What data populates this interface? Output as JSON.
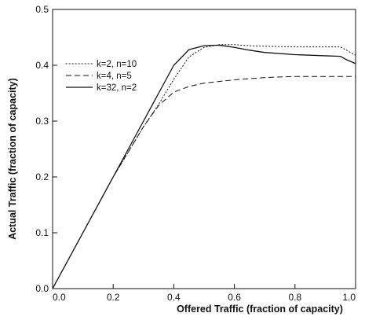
{
  "chart_data": {
    "type": "line",
    "title": "",
    "xlabel": "Offered Traffic (fraction of capacity)",
    "ylabel": "Actual Traffic (fraction of capacity)",
    "xlim": [
      0.0,
      1.0
    ],
    "ylim": [
      0.0,
      0.5
    ],
    "x_ticks": [
      {
        "value": 0.0,
        "label": "0.0"
      },
      {
        "value": 0.2,
        "label": "0.2"
      },
      {
        "value": 0.4,
        "label": "0.4"
      },
      {
        "value": 0.6,
        "label": "0.6"
      },
      {
        "value": 0.8,
        "label": "0.8"
      },
      {
        "value": 1.0,
        "label": "1.0"
      }
    ],
    "y_ticks": [
      {
        "value": 0.0,
        "label": "0.0"
      },
      {
        "value": 0.1,
        "label": "0.1"
      },
      {
        "value": 0.2,
        "label": "0.2"
      },
      {
        "value": 0.3,
        "label": "0.3"
      },
      {
        "value": 0.4,
        "label": "0.4"
      },
      {
        "value": 0.5,
        "label": "0.5"
      }
    ],
    "grid": false,
    "legend_position": "upper-left",
    "series": [
      {
        "name": "k=2, n=10",
        "style": "dotted",
        "x": [
          0.0,
          0.1,
          0.2,
          0.3,
          0.35,
          0.4,
          0.45,
          0.5,
          0.55,
          0.6,
          0.65,
          0.7,
          0.8,
          0.9,
          0.95,
          1.0
        ],
        "y": [
          0.0,
          0.1,
          0.2,
          0.29,
          0.33,
          0.375,
          0.415,
          0.432,
          0.437,
          0.437,
          0.435,
          0.434,
          0.433,
          0.433,
          0.433,
          0.418
        ]
      },
      {
        "name": "k=4, n=5",
        "style": "dashed",
        "x": [
          0.0,
          0.1,
          0.2,
          0.3,
          0.35,
          0.4,
          0.45,
          0.5,
          0.6,
          0.7,
          0.8,
          0.9,
          1.0
        ],
        "y": [
          0.0,
          0.1,
          0.2,
          0.29,
          0.328,
          0.352,
          0.362,
          0.368,
          0.374,
          0.378,
          0.38,
          0.38,
          0.38
        ]
      },
      {
        "name": "k=32, n=2",
        "style": "solid",
        "x": [
          0.0,
          0.1,
          0.2,
          0.3,
          0.35,
          0.4,
          0.45,
          0.5,
          0.55,
          0.6,
          0.65,
          0.7,
          0.8,
          0.9,
          0.95,
          0.97,
          1.0
        ],
        "y": [
          0.0,
          0.1,
          0.2,
          0.3,
          0.35,
          0.4,
          0.428,
          0.435,
          0.436,
          0.432,
          0.427,
          0.423,
          0.419,
          0.417,
          0.416,
          0.41,
          0.403
        ]
      }
    ],
    "colors": {
      "axis": "#111111",
      "lines": "#111111"
    }
  }
}
